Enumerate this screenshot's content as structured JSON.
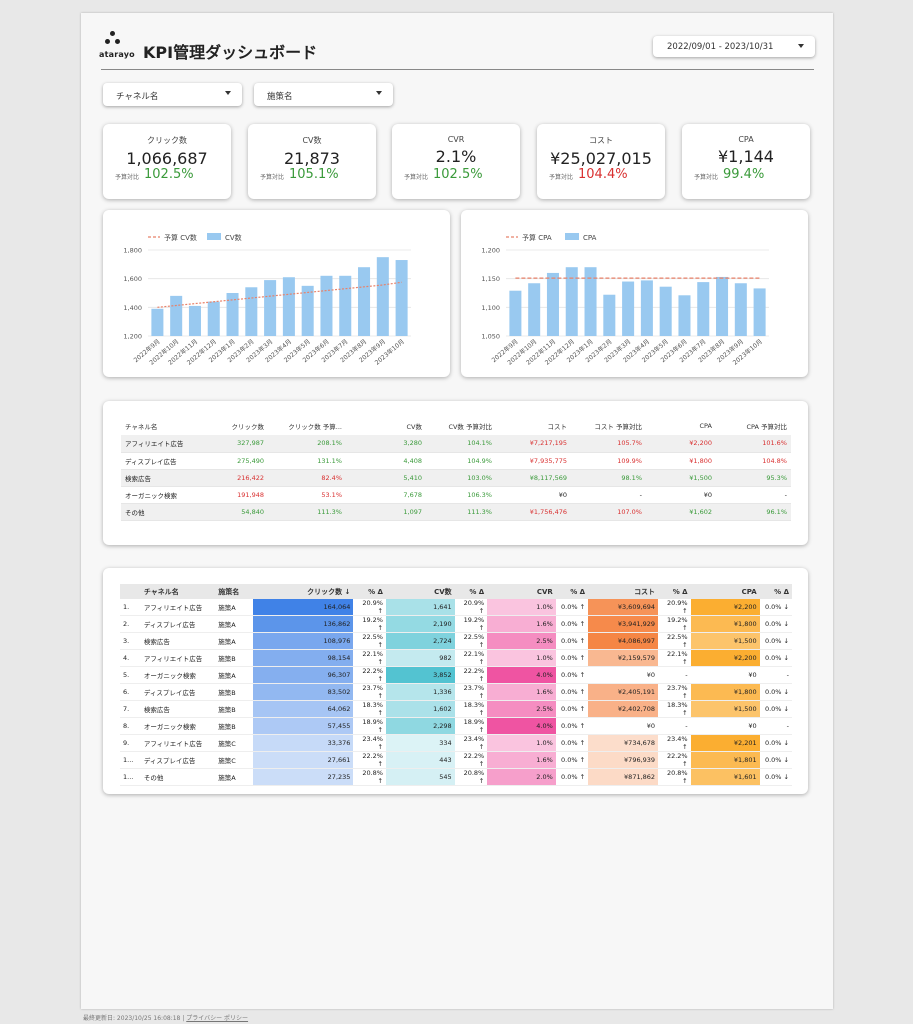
{
  "header": {
    "logo_text": "atarayo",
    "title": "KPI管理ダッシュボード",
    "date_range": "2022/09/01 - 2023/10/31"
  },
  "filters": [
    {
      "label": "チャネル名"
    },
    {
      "label": "施策名"
    }
  ],
  "kpis": [
    {
      "label": "クリック数",
      "value": "1,066,687",
      "compare_label": "予算対比",
      "pct": "102.5%",
      "status": "good"
    },
    {
      "label": "CV数",
      "value": "21,873",
      "compare_label": "予算対比",
      "pct": "105.1%",
      "status": "good"
    },
    {
      "label": "CVR",
      "value": "2.1%",
      "compare_label": "予算対比",
      "pct": "102.5%",
      "status": "good"
    },
    {
      "label": "コスト",
      "value": "¥25,027,015",
      "compare_label": "予算対比",
      "pct": "104.4%",
      "status": "bad"
    },
    {
      "label": "CPA",
      "value": "¥1,144",
      "compare_label": "予算対比",
      "pct": "99.4%",
      "status": "good"
    }
  ],
  "chart_data": [
    {
      "type": "bar",
      "legend": [
        "予算 CV数",
        "CV数"
      ],
      "categories": [
        "2022年9月",
        "2022年10月",
        "2022年11月",
        "2022年12月",
        "2023年1月",
        "2023年2月",
        "2023年3月",
        "2023年4月",
        "2023年5月",
        "2023年6月",
        "2023年7月",
        "2023年8月",
        "2023年9月",
        "2023年10月"
      ],
      "series": [
        {
          "name": "CV数",
          "kind": "bar",
          "values": [
            1390,
            1480,
            1410,
            1440,
            1500,
            1540,
            1590,
            1610,
            1550,
            1620,
            1620,
            1680,
            1750,
            1730
          ]
        },
        {
          "name": "予算 CV数",
          "kind": "line",
          "values": [
            1400,
            1413,
            1426,
            1439,
            1452,
            1465,
            1478,
            1491,
            1504,
            1517,
            1530,
            1543,
            1556,
            1575
          ]
        }
      ],
      "yticks": [
        "1,200",
        "1,400",
        "1,600",
        "1,800"
      ],
      "ylim": [
        1200,
        1800
      ],
      "colors": {
        "bar": "#99c9f0",
        "line": "#e8826a"
      }
    },
    {
      "type": "bar",
      "legend": [
        "予算 CPA",
        "CPA"
      ],
      "categories": [
        "2022年9月",
        "2022年10月",
        "2022年11月",
        "2022年12月",
        "2023年1月",
        "2023年2月",
        "2023年3月",
        "2023年4月",
        "2023年5月",
        "2023年6月",
        "2023年7月",
        "2023年8月",
        "2023年9月",
        "2023年10月"
      ],
      "series": [
        {
          "name": "CPA",
          "kind": "bar",
          "values": [
            1129,
            1142,
            1160,
            1170,
            1170,
            1122,
            1145,
            1147,
            1136,
            1121,
            1144,
            1153,
            1142,
            1133
          ]
        },
        {
          "name": "予算 CPA",
          "kind": "line",
          "values": [
            1151,
            1151,
            1151,
            1151,
            1151,
            1151,
            1151,
            1151,
            1151,
            1151,
            1151,
            1151,
            1151,
            1151
          ]
        }
      ],
      "yticks": [
        "1,050",
        "1,100",
        "1,150",
        "1,200"
      ],
      "ylim": [
        1050,
        1200
      ],
      "colors": {
        "bar": "#99c9f0",
        "line": "#e8826a"
      }
    }
  ],
  "channel_table": {
    "headers": [
      "チャネル名",
      "クリック数",
      "クリック数 予算...",
      "CV数",
      "CV数 予算対比",
      "コスト",
      "コスト 予算対比",
      "CPA",
      "CPA 予算対比"
    ],
    "rows": [
      {
        "cells": [
          "アフィリエイト広告",
          "327,987",
          "208.1%",
          "3,280",
          "104.1%",
          "¥7,217,195",
          "105.7%",
          "¥2,200",
          "101.6%"
        ],
        "colors": [
          "",
          "g",
          "g",
          "g",
          "g",
          "r",
          "r",
          "r",
          "r"
        ]
      },
      {
        "cells": [
          "ディスプレイ広告",
          "275,490",
          "131.1%",
          "4,408",
          "104.9%",
          "¥7,935,775",
          "109.9%",
          "¥1,800",
          "104.8%"
        ],
        "colors": [
          "",
          "g",
          "g",
          "g",
          "g",
          "r",
          "r",
          "r",
          "r"
        ]
      },
      {
        "cells": [
          "検索広告",
          "216,422",
          "82.4%",
          "5,410",
          "103.0%",
          "¥8,117,569",
          "98.1%",
          "¥1,500",
          "95.3%"
        ],
        "colors": [
          "",
          "r",
          "r",
          "g",
          "g",
          "g",
          "g",
          "g",
          "g"
        ]
      },
      {
        "cells": [
          "オーガニック検索",
          "191,948",
          "53.1%",
          "7,678",
          "106.3%",
          "¥0",
          "-",
          "¥0",
          "-"
        ],
        "colors": [
          "",
          "r",
          "r",
          "g",
          "g",
          "",
          "",
          "",
          ""
        ]
      },
      {
        "cells": [
          "その他",
          "54,840",
          "111.3%",
          "1,097",
          "111.3%",
          "¥1,756,476",
          "107.0%",
          "¥1,602",
          "96.1%"
        ],
        "colors": [
          "",
          "g",
          "g",
          "g",
          "g",
          "r",
          "r",
          "g",
          "g"
        ]
      }
    ]
  },
  "detail_table": {
    "headers": [
      "",
      "チャネル名",
      "施策名",
      "クリック数 ↓",
      "% Δ",
      "CV数",
      "% Δ",
      "CVR",
      "% Δ",
      "コスト",
      "% Δ",
      "CPA",
      "% Δ"
    ],
    "rows": [
      {
        "no": "1.",
        "channel": "アフィリエイト広告",
        "campaign": "施策A",
        "clicks": "164,064",
        "clicks_d": "20.9% ↑",
        "cv": "1,641",
        "cv_d": "20.9% ↑",
        "cvr": "1.0%",
        "cvr_d": "0.0% ↑",
        "cost": "¥3,609,694",
        "cost_d": "20.9% ↑",
        "cpa": "¥2,200",
        "cpa_d": "0.0% ↓",
        "shade": {
          "clicks": 1.0,
          "cv": 0.43,
          "cvr": 0.25,
          "cost": 0.88,
          "cpa": 1.0
        }
      },
      {
        "no": "2.",
        "channel": "ディスプレイ広告",
        "campaign": "施策A",
        "clicks": "136,862",
        "clicks_d": "19.2% ↑",
        "cv": "2,190",
        "cv_d": "19.2% ↑",
        "cvr": "1.6%",
        "cvr_d": "0.0% ↑",
        "cost": "¥3,941,929",
        "cost_d": "19.2% ↑",
        "cpa": "¥1,800",
        "cpa_d": "0.0% ↓",
        "shade": {
          "clicks": 0.83,
          "cv": 0.57,
          "cvr": 0.4,
          "cost": 0.96,
          "cpa": 0.82
        }
      },
      {
        "no": "3.",
        "channel": "検索広告",
        "campaign": "施策A",
        "clicks": "108,976",
        "clicks_d": "22.5% ↑",
        "cv": "2,724",
        "cv_d": "22.5% ↑",
        "cvr": "2.5%",
        "cvr_d": "0.0% ↑",
        "cost": "¥4,086,997",
        "cost_d": "22.5% ↑",
        "cpa": "¥1,500",
        "cpa_d": "0.0% ↓",
        "shade": {
          "clicks": 0.66,
          "cv": 0.71,
          "cvr": 0.62,
          "cost": 1.0,
          "cpa": 0.68
        }
      },
      {
        "no": "4.",
        "channel": "アフィリエイト広告",
        "campaign": "施策B",
        "clicks": "98,154",
        "clicks_d": "22.1% ↑",
        "cv": "982",
        "cv_d": "22.1% ↑",
        "cvr": "1.0%",
        "cvr_d": "0.0% ↑",
        "cost": "¥2,159,579",
        "cost_d": "22.1% ↑",
        "cpa": "¥2,200",
        "cpa_d": "0.0% ↓",
        "shade": {
          "clicks": 0.6,
          "cv": 0.25,
          "cvr": 0.25,
          "cost": 0.53,
          "cpa": 1.0
        }
      },
      {
        "no": "5.",
        "channel": "オーガニック検索",
        "campaign": "施策A",
        "clicks": "96,307",
        "clicks_d": "22.2% ↑",
        "cv": "3,852",
        "cv_d": "22.2% ↑",
        "cvr": "4.0%",
        "cvr_d": "0.0% ↑",
        "cost": "¥0",
        "cost_d": "-",
        "cpa": "¥0",
        "cpa_d": "-",
        "shade": {
          "clicks": 0.59,
          "cv": 1.0,
          "cvr": 1.0,
          "cost": 0,
          "cpa": 0
        }
      },
      {
        "no": "6.",
        "channel": "ディスプレイ広告",
        "campaign": "施策B",
        "clicks": "83,502",
        "clicks_d": "23.7% ↑",
        "cv": "1,336",
        "cv_d": "23.7% ↑",
        "cvr": "1.6%",
        "cvr_d": "0.0% ↑",
        "cost": "¥2,405,191",
        "cost_d": "23.7% ↑",
        "cpa": "¥1,800",
        "cpa_d": "0.0% ↓",
        "shade": {
          "clicks": 0.51,
          "cv": 0.35,
          "cvr": 0.4,
          "cost": 0.59,
          "cpa": 0.82
        }
      },
      {
        "no": "7.",
        "channel": "検索広告",
        "campaign": "施策B",
        "clicks": "64,062",
        "clicks_d": "18.3% ↑",
        "cv": "1,602",
        "cv_d": "18.3% ↑",
        "cvr": "2.5%",
        "cvr_d": "0.0% ↑",
        "cost": "¥2,402,708",
        "cost_d": "18.3% ↑",
        "cpa": "¥1,500",
        "cpa_d": "0.0% ↓",
        "shade": {
          "clicks": 0.39,
          "cv": 0.42,
          "cvr": 0.62,
          "cost": 0.59,
          "cpa": 0.68
        }
      },
      {
        "no": "8.",
        "channel": "オーガニック検索",
        "campaign": "施策B",
        "clicks": "57,455",
        "clicks_d": "18.9% ↑",
        "cv": "2,298",
        "cv_d": "18.9% ↑",
        "cvr": "4.0%",
        "cvr_d": "0.0% ↑",
        "cost": "¥0",
        "cost_d": "-",
        "cpa": "¥0",
        "cpa_d": "-",
        "shade": {
          "clicks": 0.35,
          "cv": 0.6,
          "cvr": 1.0,
          "cost": 0,
          "cpa": 0
        }
      },
      {
        "no": "9.",
        "channel": "アフィリエイト広告",
        "campaign": "施策C",
        "clicks": "33,376",
        "clicks_d": "23.4% ↑",
        "cv": "334",
        "cv_d": "23.4% ↑",
        "cvr": "1.0%",
        "cvr_d": "0.0% ↑",
        "cost": "¥734,678",
        "cost_d": "23.4% ↑",
        "cpa": "¥2,201",
        "cpa_d": "0.0% ↓",
        "shade": {
          "clicks": 0.2,
          "cv": 0.09,
          "cvr": 0.25,
          "cost": 0.18,
          "cpa": 1.0
        }
      },
      {
        "no": "1...",
        "channel": "ディスプレイ広告",
        "campaign": "施策C",
        "clicks": "27,661",
        "clicks_d": "22.2% ↑",
        "cv": "443",
        "cv_d": "22.2% ↑",
        "cvr": "1.6%",
        "cvr_d": "0.0% ↑",
        "cost": "¥796,939",
        "cost_d": "22.2% ↑",
        "cpa": "¥1,801",
        "cpa_d": "0.0% ↓",
        "shade": {
          "clicks": 0.17,
          "cv": 0.12,
          "cvr": 0.4,
          "cost": 0.2,
          "cpa": 0.82
        }
      },
      {
        "no": "1...",
        "channel": "その他",
        "campaign": "施策A",
        "clicks": "27,235",
        "clicks_d": "20.8% ↑",
        "cv": "545",
        "cv_d": "20.8% ↑",
        "cvr": "2.0%",
        "cvr_d": "0.0% ↑",
        "cost": "¥871,862",
        "cost_d": "20.8% ↑",
        "cpa": "¥1,601",
        "cpa_d": "0.0% ↓",
        "shade": {
          "clicks": 0.17,
          "cv": 0.14,
          "cvr": 0.5,
          "cost": 0.21,
          "cpa": 0.73
        }
      }
    ],
    "palette": {
      "clicks": "#3a7ee6",
      "cv": "#4ec1d0",
      "cvr": "#ef4f9f",
      "cost": "#f5823f",
      "cpa": "#fbab2b"
    }
  },
  "footer": {
    "updated": "最終更新日: 2023/10/25 16:08:18",
    "separator": "|",
    "policy_link": "プライバシー ポリシー"
  }
}
